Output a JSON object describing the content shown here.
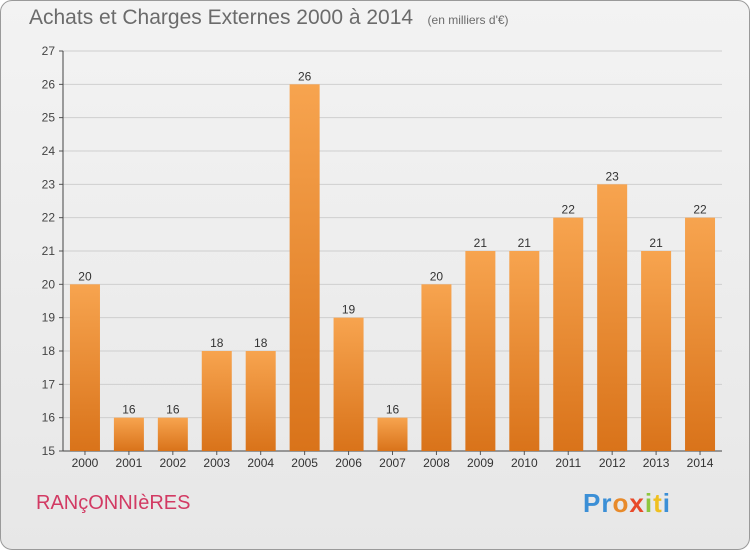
{
  "chart_data": {
    "type": "bar",
    "title": "Achats et Charges Externes 2000 à 2014",
    "subtitle": "(en milliers d'€)",
    "categories": [
      "2000",
      "2001",
      "2002",
      "2003",
      "2004",
      "2005",
      "2006",
      "2007",
      "2008",
      "2009",
      "2010",
      "2011",
      "2012",
      "2013",
      "2014"
    ],
    "values": [
      20,
      16,
      16,
      18,
      18,
      26,
      19,
      16,
      20,
      21,
      21,
      22,
      23,
      21,
      22
    ],
    "ylim": [
      15,
      27
    ],
    "yticks": [
      15,
      16,
      17,
      18,
      19,
      20,
      21,
      22,
      23,
      24,
      25,
      26,
      27
    ],
    "grid": true,
    "bar_color_top": "#f7a44f",
    "bar_color_bottom": "#d9731a"
  },
  "footer": {
    "place": "RANçONNIèRES",
    "logo": [
      "P",
      "r",
      "o",
      "x",
      "i",
      "t",
      "i"
    ],
    "logo_colors": [
      "#3b8fd6",
      "#3b8fd6",
      "#e88a2a",
      "#e84a2a",
      "#8ec63f",
      "#f0c020",
      "#3b8fd6"
    ]
  }
}
